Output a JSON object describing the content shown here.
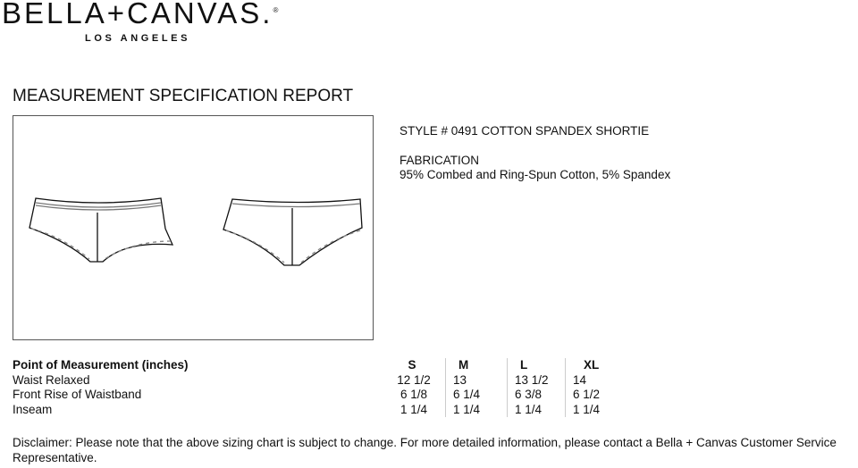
{
  "brand": {
    "name": "BELLA+CANVAS.",
    "mark": "®",
    "location": "LOS ANGELES"
  },
  "report_title": "MEASUREMENT SPECIFICATION REPORT",
  "style": {
    "label": "STYLE #  0491  COTTON SPANDEX SHORTIE"
  },
  "fabrication": {
    "label": "FABRICATION",
    "value": "95% Combed and Ring-Spun Cotton, 5% Spandex"
  },
  "table": {
    "header": [
      "Point of Measurement (inches)",
      "S",
      "M",
      "L",
      "XL"
    ],
    "rows": [
      [
        "Waist Relaxed",
        "12 1/2",
        "13",
        "13 1/2",
        "14"
      ],
      [
        "Front Rise of Waistband",
        "6 1/8",
        "6 1/4",
        "6 3/8",
        "6 1/2"
      ],
      [
        "Inseam",
        "1 1/4",
        "1 1/4",
        "1 1/4",
        "1 1/4"
      ]
    ]
  },
  "disclaimer": "Disclaimer: Please note that the above sizing chart is subject to change.  For more detailed information, please contact a Bella + Canvas Customer Service Representative."
}
